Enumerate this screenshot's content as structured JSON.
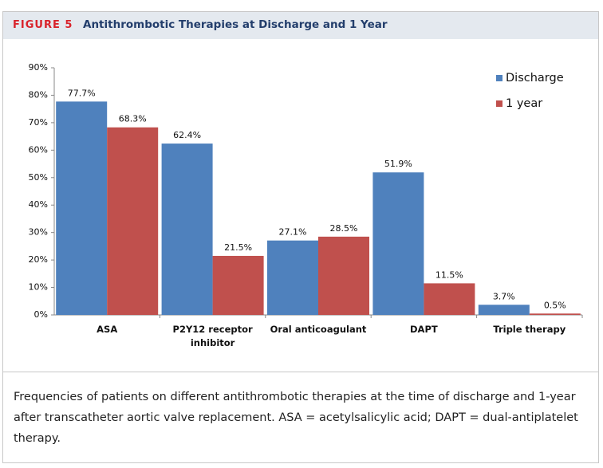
{
  "figure": {
    "label": "FIGURE 5",
    "title": "Antithrombotic Therapies at Discharge and 1 Year"
  },
  "chart_data": {
    "type": "bar",
    "categories": [
      "ASA",
      "P2Y12 receptor inhibitor",
      "Oral anticoagulant",
      "DAPT",
      "Triple therapy"
    ],
    "series": [
      {
        "name": "Discharge",
        "color": "#4f81bd",
        "values": [
          77.7,
          62.4,
          27.1,
          51.9,
          3.7
        ],
        "value_labels": [
          "77.7%",
          "62.4%",
          "27.1%",
          "51.9%",
          "3.7%"
        ]
      },
      {
        "name": "1 year",
        "color": "#c0504d",
        "values": [
          68.3,
          21.5,
          28.5,
          11.5,
          0.5
        ],
        "value_labels": [
          "68.3%",
          "21.5%",
          "28.5%",
          "11.5%",
          "0.5%"
        ]
      }
    ],
    "ylim": [
      0,
      90
    ],
    "yticks": [
      {
        "value": 0,
        "label": "0%"
      },
      {
        "value": 10,
        "label": "10%"
      },
      {
        "value": 20,
        "label": "20%"
      },
      {
        "value": 30,
        "label": "30%"
      },
      {
        "value": 40,
        "label": "40%"
      },
      {
        "value": 50,
        "label": "50%"
      },
      {
        "value": 60,
        "label": "60%"
      },
      {
        "value": 70,
        "label": "70%"
      },
      {
        "value": 80,
        "label": "80%"
      },
      {
        "value": 90,
        "label": "90%"
      }
    ],
    "legend": "top-right"
  },
  "caption": "Frequencies of patients on different antithrombotic therapies at the time of discharge and 1-year after transcatheter aortic valve replacement. ASA = acetylsalicylic acid; DAPT = dual-antiplatelet therapy."
}
